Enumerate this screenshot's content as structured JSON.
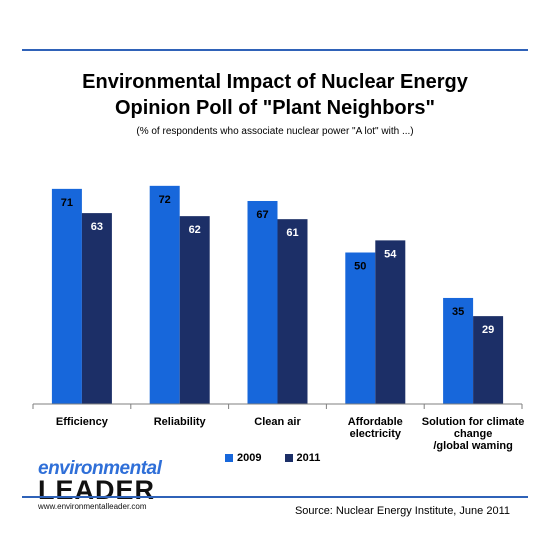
{
  "header": {
    "title_line1": "Environmental Impact of Nuclear Energy",
    "title_line2": "Opinion Poll of \"Plant Neighbors\"",
    "subtitle": "(% of respondents who associate nuclear power \"A lot\" with ...)"
  },
  "colors": {
    "series_2009": "#1767db",
    "series_2011": "#1c2f67",
    "rule": "#2f62b8",
    "axis": "#7f7f7f"
  },
  "chart_data": {
    "type": "bar",
    "title": "Environmental Impact of Nuclear Energy Opinion Poll of \"Plant Neighbors\"",
    "subtitle": "(% of respondents who associate nuclear power \"A lot\" with ...)",
    "categories": [
      [
        "Efficiency"
      ],
      [
        "Reliability"
      ],
      [
        "Clean air"
      ],
      [
        "Affordable",
        "electricity"
      ],
      [
        "Solution for climate",
        "change",
        "/global waming"
      ]
    ],
    "series": [
      {
        "name": "2009",
        "values": [
          71,
          72,
          67,
          50,
          35
        ]
      },
      {
        "name": "2011",
        "values": [
          63,
          62,
          61,
          54,
          29
        ]
      }
    ],
    "ylim": [
      0,
      80
    ],
    "grid": false,
    "legend": "bottom"
  },
  "legend": {
    "items": [
      "2009",
      "2011"
    ]
  },
  "branding": {
    "logo_line1": "environmental",
    "logo_line2": "LEADER",
    "logo_url": "www.environmentalleader.com"
  },
  "source": "Source: Nuclear Energy Institute, June 2011"
}
